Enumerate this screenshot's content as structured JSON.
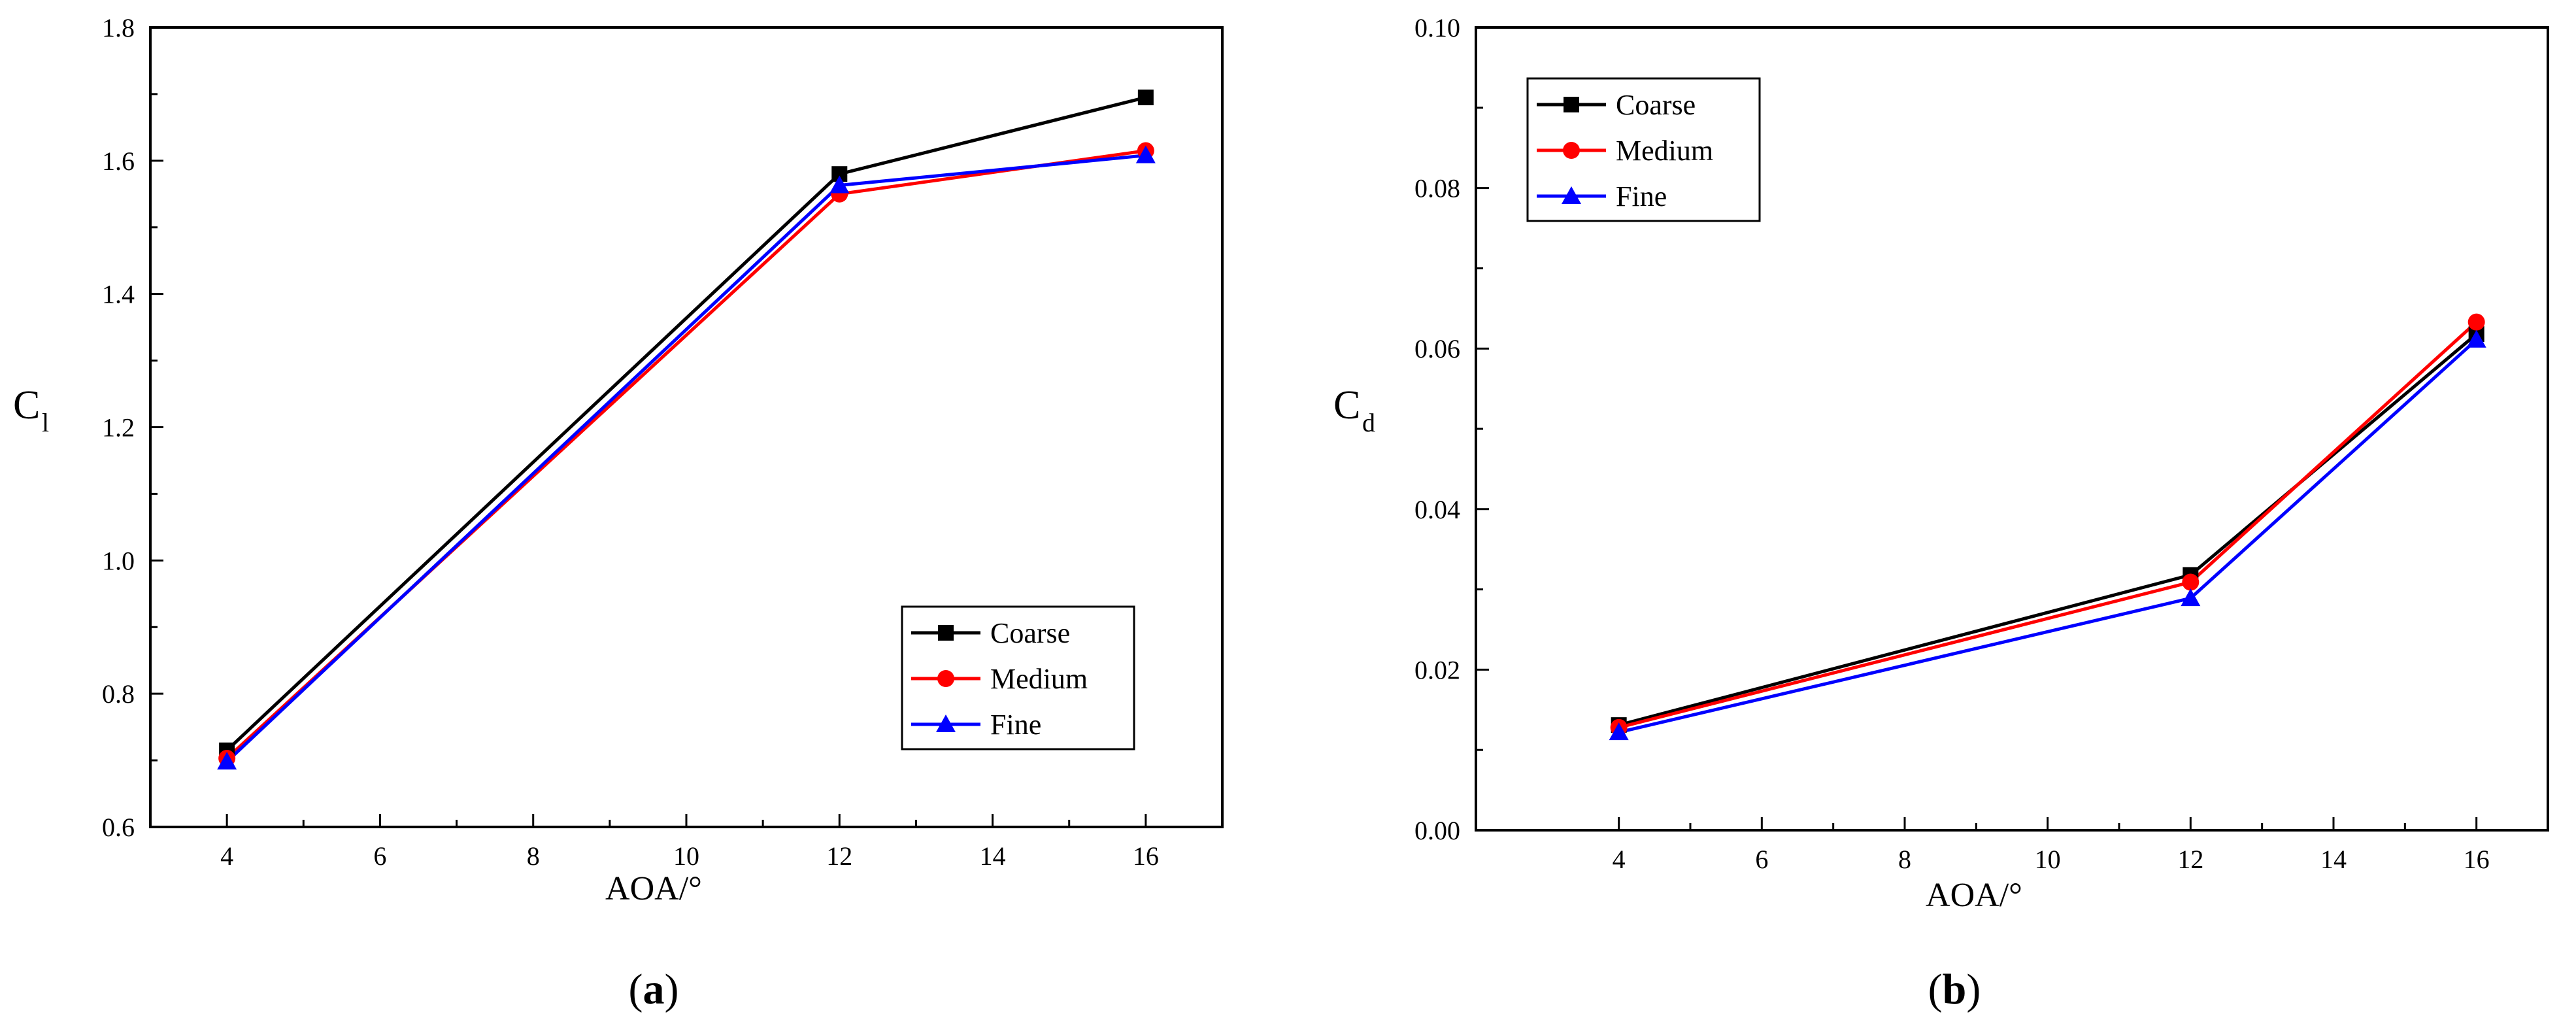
{
  "chart_data": [
    {
      "type": "line",
      "panel_label": "a",
      "title": "",
      "xlabel": "AOA/°",
      "ylabel_main": "C",
      "ylabel_sub": "l",
      "x": [
        4,
        12,
        16
      ],
      "xlim": [
        3,
        17
      ],
      "ylim": [
        0.6,
        1.8
      ],
      "xticks": [
        "4",
        "6",
        "8",
        "10",
        "12",
        "14",
        "16"
      ],
      "yticks": [
        "0.6",
        "0.8",
        "1.0",
        "1.2",
        "1.4",
        "1.6",
        "1.8"
      ],
      "legend_position": "bottom-right",
      "series": [
        {
          "name": "Coarse",
          "marker": "square",
          "color": "#000000",
          "values": [
            0.715,
            1.58,
            1.695
          ]
        },
        {
          "name": "Medium",
          "marker": "circle",
          "color": "#ff0000",
          "values": [
            0.703,
            1.55,
            1.615
          ]
        },
        {
          "name": "Fine",
          "marker": "triangle",
          "color": "#0000ff",
          "values": [
            0.698,
            1.563,
            1.608
          ]
        }
      ]
    },
    {
      "type": "line",
      "panel_label": "b",
      "title": "",
      "xlabel": "AOA/°",
      "ylabel_main": "C",
      "ylabel_sub": "d",
      "x": [
        4,
        12,
        16
      ],
      "xlim": [
        2,
        17
      ],
      "ylim": [
        0.0,
        0.1
      ],
      "xticks": [
        "4",
        "6",
        "8",
        "10",
        "12",
        "14",
        "16"
      ],
      "yticks": [
        "0.00",
        "0.02",
        "0.04",
        "0.06",
        "0.08",
        "0.10"
      ],
      "legend_position": "top-left",
      "series": [
        {
          "name": "Coarse",
          "marker": "square",
          "color": "#000000",
          "values": [
            0.0131,
            0.0318,
            0.0618
          ]
        },
        {
          "name": "Medium",
          "marker": "circle",
          "color": "#ff0000",
          "values": [
            0.0128,
            0.0309,
            0.0633
          ]
        },
        {
          "name": "Fine",
          "marker": "triangle",
          "color": "#0000ff",
          "values": [
            0.0122,
            0.0289,
            0.0611
          ]
        }
      ]
    }
  ]
}
